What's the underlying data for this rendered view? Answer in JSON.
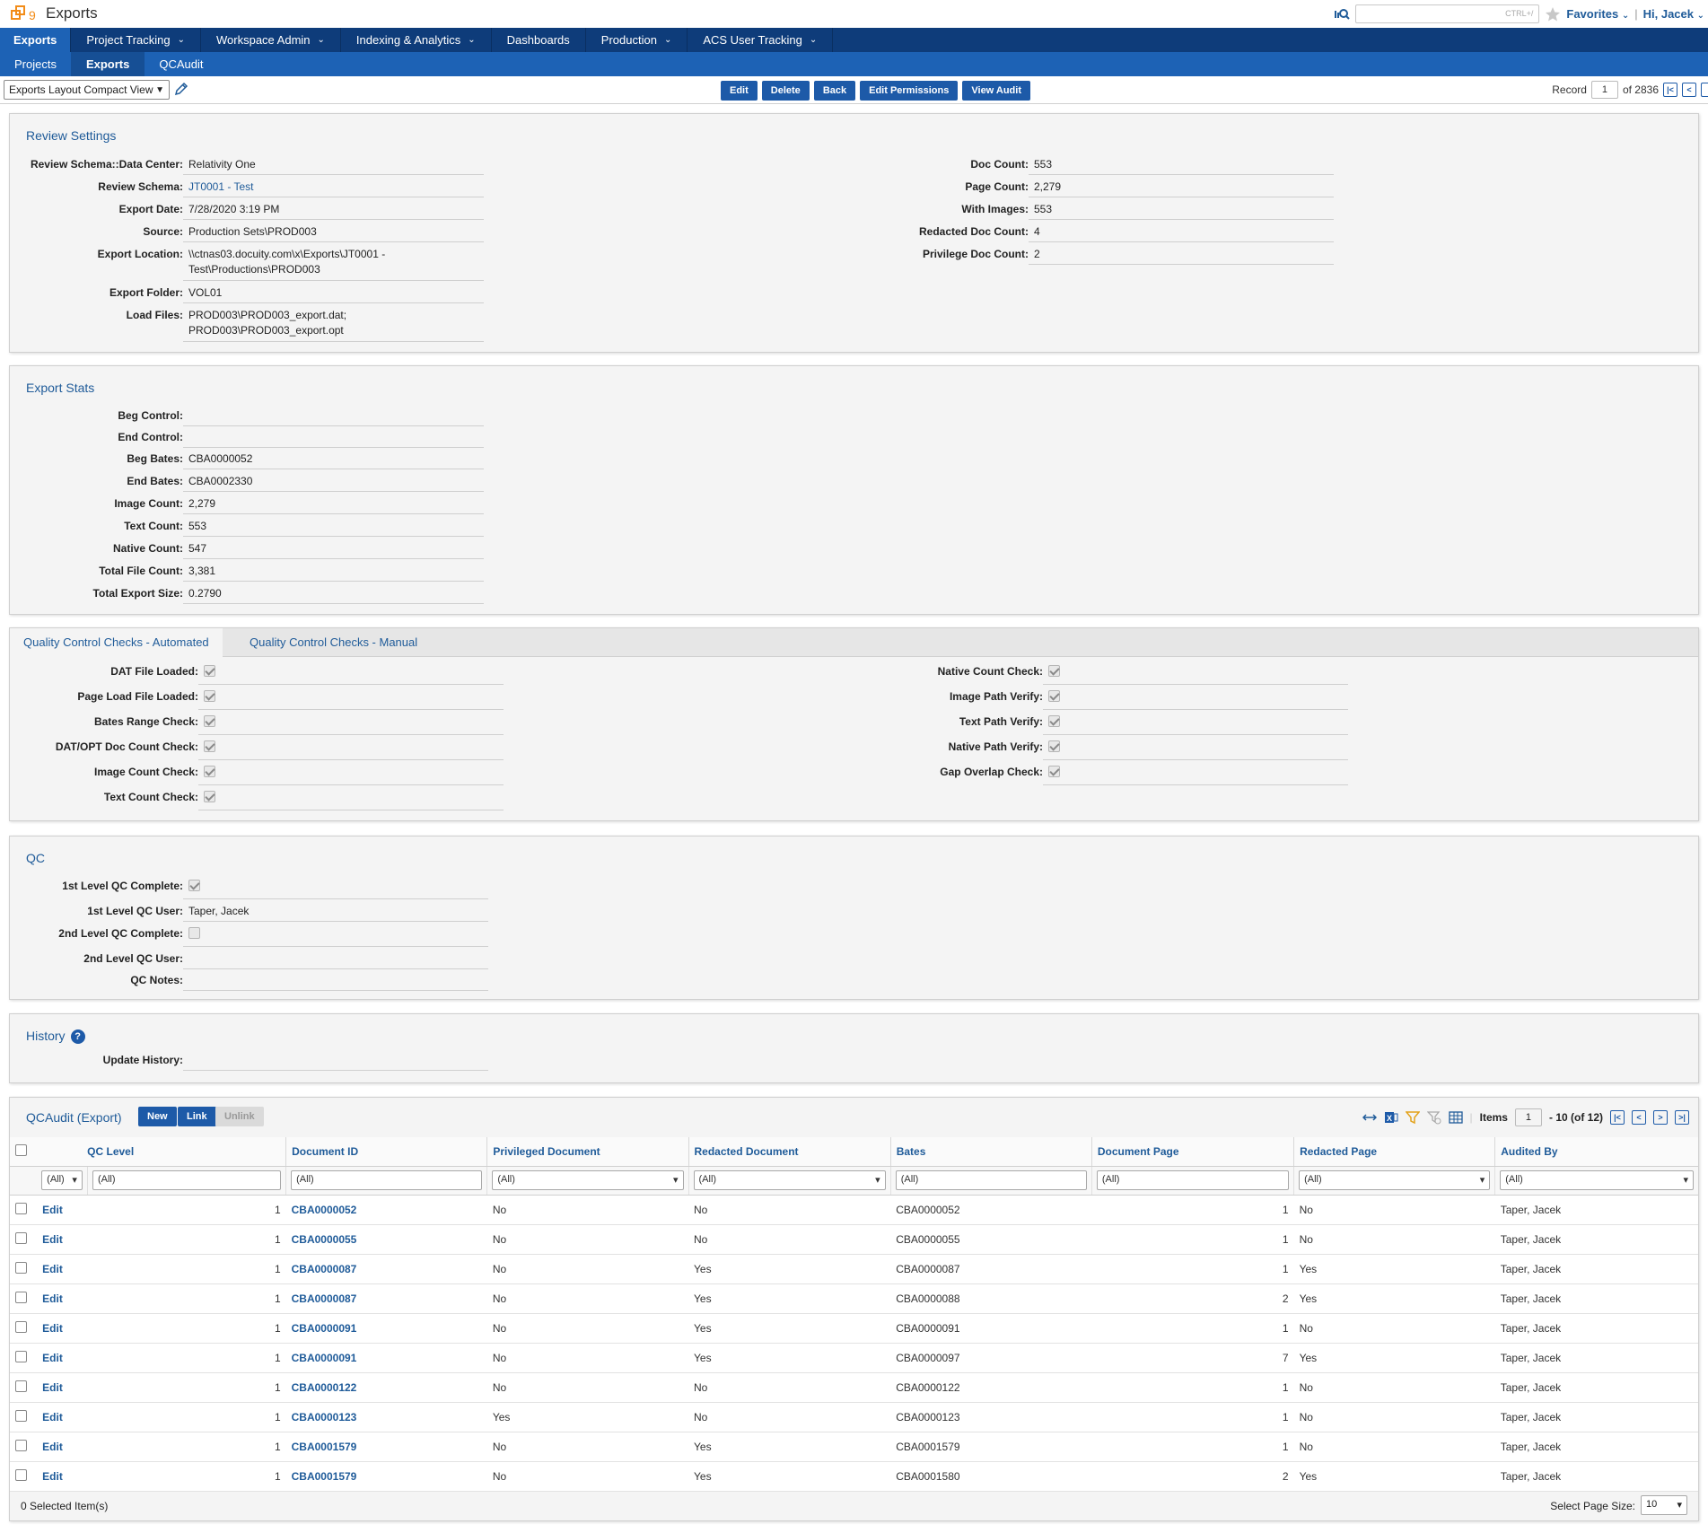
{
  "app": {
    "title": "Exports",
    "search_hint": "CTRL+/",
    "favorites": "Favorites",
    "greeting": "Hi, Jacek"
  },
  "nav": {
    "primary": [
      {
        "label": "Exports",
        "chev": ""
      },
      {
        "label": "Project Tracking",
        "chev": "⌄"
      },
      {
        "label": "Workspace Admin",
        "chev": "⌄"
      },
      {
        "label": "Indexing & Analytics",
        "chev": "⌄"
      },
      {
        "label": "Dashboards",
        "chev": ""
      },
      {
        "label": "Production",
        "chev": "⌄"
      },
      {
        "label": "ACS User Tracking",
        "chev": "⌄"
      }
    ],
    "secondary": [
      "Projects",
      "Exports",
      "QCAudit"
    ]
  },
  "toolbar": {
    "layout": "Exports Layout Compact View",
    "buttons": [
      "Edit",
      "Delete",
      "Back",
      "Edit Permissions",
      "View Audit"
    ],
    "record_label": "Record",
    "record_value": "1",
    "record_total": "of 2836"
  },
  "review": {
    "title": "Review Settings",
    "left": [
      {
        "label": "Review Schema::Data Center:",
        "value": "Relativity One"
      },
      {
        "label": "Review Schema:",
        "value": "JT0001 - Test"
      },
      {
        "label": "Export Date:",
        "value": "7/28/2020 3:19 PM"
      },
      {
        "label": "Source:",
        "value": "Production Sets\\PROD003"
      },
      {
        "label": "Export Location:",
        "value": "\\\\ctnas03.docuity.com\\x\\Exports\\JT0001 -",
        "value2": "Test\\Productions\\PROD003"
      },
      {
        "label": "Export Folder:",
        "value": "VOL01"
      },
      {
        "label": "Load Files:",
        "value": "PROD003\\PROD003_export.dat;",
        "value2": "PROD003\\PROD003_export.opt"
      }
    ],
    "right": [
      {
        "label": "Doc Count:",
        "value": "553"
      },
      {
        "label": "Page Count:",
        "value": "2,279"
      },
      {
        "label": "With Images:",
        "value": "553"
      },
      {
        "label": "Redacted Doc Count:",
        "value": "4"
      },
      {
        "label": "Privilege Doc Count:",
        "value": "2"
      }
    ]
  },
  "stats": {
    "title": "Export Stats",
    "fields": [
      {
        "label": "Beg Control:",
        "value": ""
      },
      {
        "label": "End Control:",
        "value": ""
      },
      {
        "label": "Beg Bates:",
        "value": "CBA0000052"
      },
      {
        "label": "End Bates:",
        "value": "CBA0002330"
      },
      {
        "label": "Image Count:",
        "value": "2,279"
      },
      {
        "label": "Text Count:",
        "value": "553"
      },
      {
        "label": "Native Count:",
        "value": "547"
      },
      {
        "label": "Total File Count:",
        "value": "3,381"
      },
      {
        "label": "Total Export Size:",
        "value": "0.2790"
      }
    ]
  },
  "qc_checks": {
    "tabs": [
      "Quality Control Checks - Automated",
      "Quality Control Checks - Manual"
    ],
    "left": [
      "DAT File Loaded:",
      "Page Load File Loaded:",
      "Bates Range Check:",
      "DAT/OPT Doc Count Check:",
      "Image Count Check:",
      "Text Count Check:"
    ],
    "right": [
      "Native Count Check:",
      "Image Path Verify:",
      "Text Path Verify:",
      "Native Path Verify:",
      "Gap Overlap Check:"
    ]
  },
  "qc": {
    "title": "QC",
    "fields": [
      {
        "label": "1st Level QC Complete:",
        "value": ""
      },
      {
        "label": "1st Level QC User:",
        "value": "Taper, Jacek"
      },
      {
        "label": "2nd Level QC Complete:",
        "value": ""
      },
      {
        "label": "2nd Level QC User:",
        "value": ""
      },
      {
        "label": "QC Notes:",
        "value": ""
      }
    ]
  },
  "history": {
    "title": "History",
    "field_label": "Update History:",
    "field_value": ""
  },
  "qcaudit": {
    "title": "QCAudit (Export)",
    "buttons": [
      "New",
      "Link",
      "Unlink"
    ],
    "items_label": "Items",
    "items_value": "1",
    "items_range": "- 10 (of 12)",
    "columns": [
      "QC Level",
      "Document ID",
      "Privileged Document",
      "Redacted Document",
      "Bates",
      "Document Page",
      "Redacted Page",
      "Audited By"
    ],
    "filters": [
      "(All)",
      "(All)",
      "(All)",
      "(All)",
      "(All)",
      "(All)",
      "(All)",
      "(All)",
      "(All)"
    ],
    "edit_label": "Edit",
    "rows": [
      [
        "1",
        "CBA0000052",
        "No",
        "No",
        "CBA0000052",
        "1",
        "No",
        "Taper, Jacek"
      ],
      [
        "1",
        "CBA0000055",
        "No",
        "No",
        "CBA0000055",
        "1",
        "No",
        "Taper, Jacek"
      ],
      [
        "1",
        "CBA0000087",
        "No",
        "Yes",
        "CBA0000087",
        "1",
        "Yes",
        "Taper, Jacek"
      ],
      [
        "1",
        "CBA0000087",
        "No",
        "Yes",
        "CBA0000088",
        "2",
        "Yes",
        "Taper, Jacek"
      ],
      [
        "1",
        "CBA0000091",
        "No",
        "Yes",
        "CBA0000091",
        "1",
        "No",
        "Taper, Jacek"
      ],
      [
        "1",
        "CBA0000091",
        "No",
        "Yes",
        "CBA0000097",
        "7",
        "Yes",
        "Taper, Jacek"
      ],
      [
        "1",
        "CBA0000122",
        "No",
        "No",
        "CBA0000122",
        "1",
        "No",
        "Taper, Jacek"
      ],
      [
        "1",
        "CBA0000123",
        "Yes",
        "No",
        "CBA0000123",
        "1",
        "No",
        "Taper, Jacek"
      ],
      [
        "1",
        "CBA0001579",
        "No",
        "Yes",
        "CBA0001579",
        "1",
        "No",
        "Taper, Jacek"
      ],
      [
        "1",
        "CBA0001579",
        "No",
        "Yes",
        "CBA0001580",
        "2",
        "Yes",
        "Taper, Jacek"
      ]
    ],
    "selected": "0  Selected Item(s)",
    "page_size_label": "Select Page Size:",
    "page_size": "10"
  }
}
